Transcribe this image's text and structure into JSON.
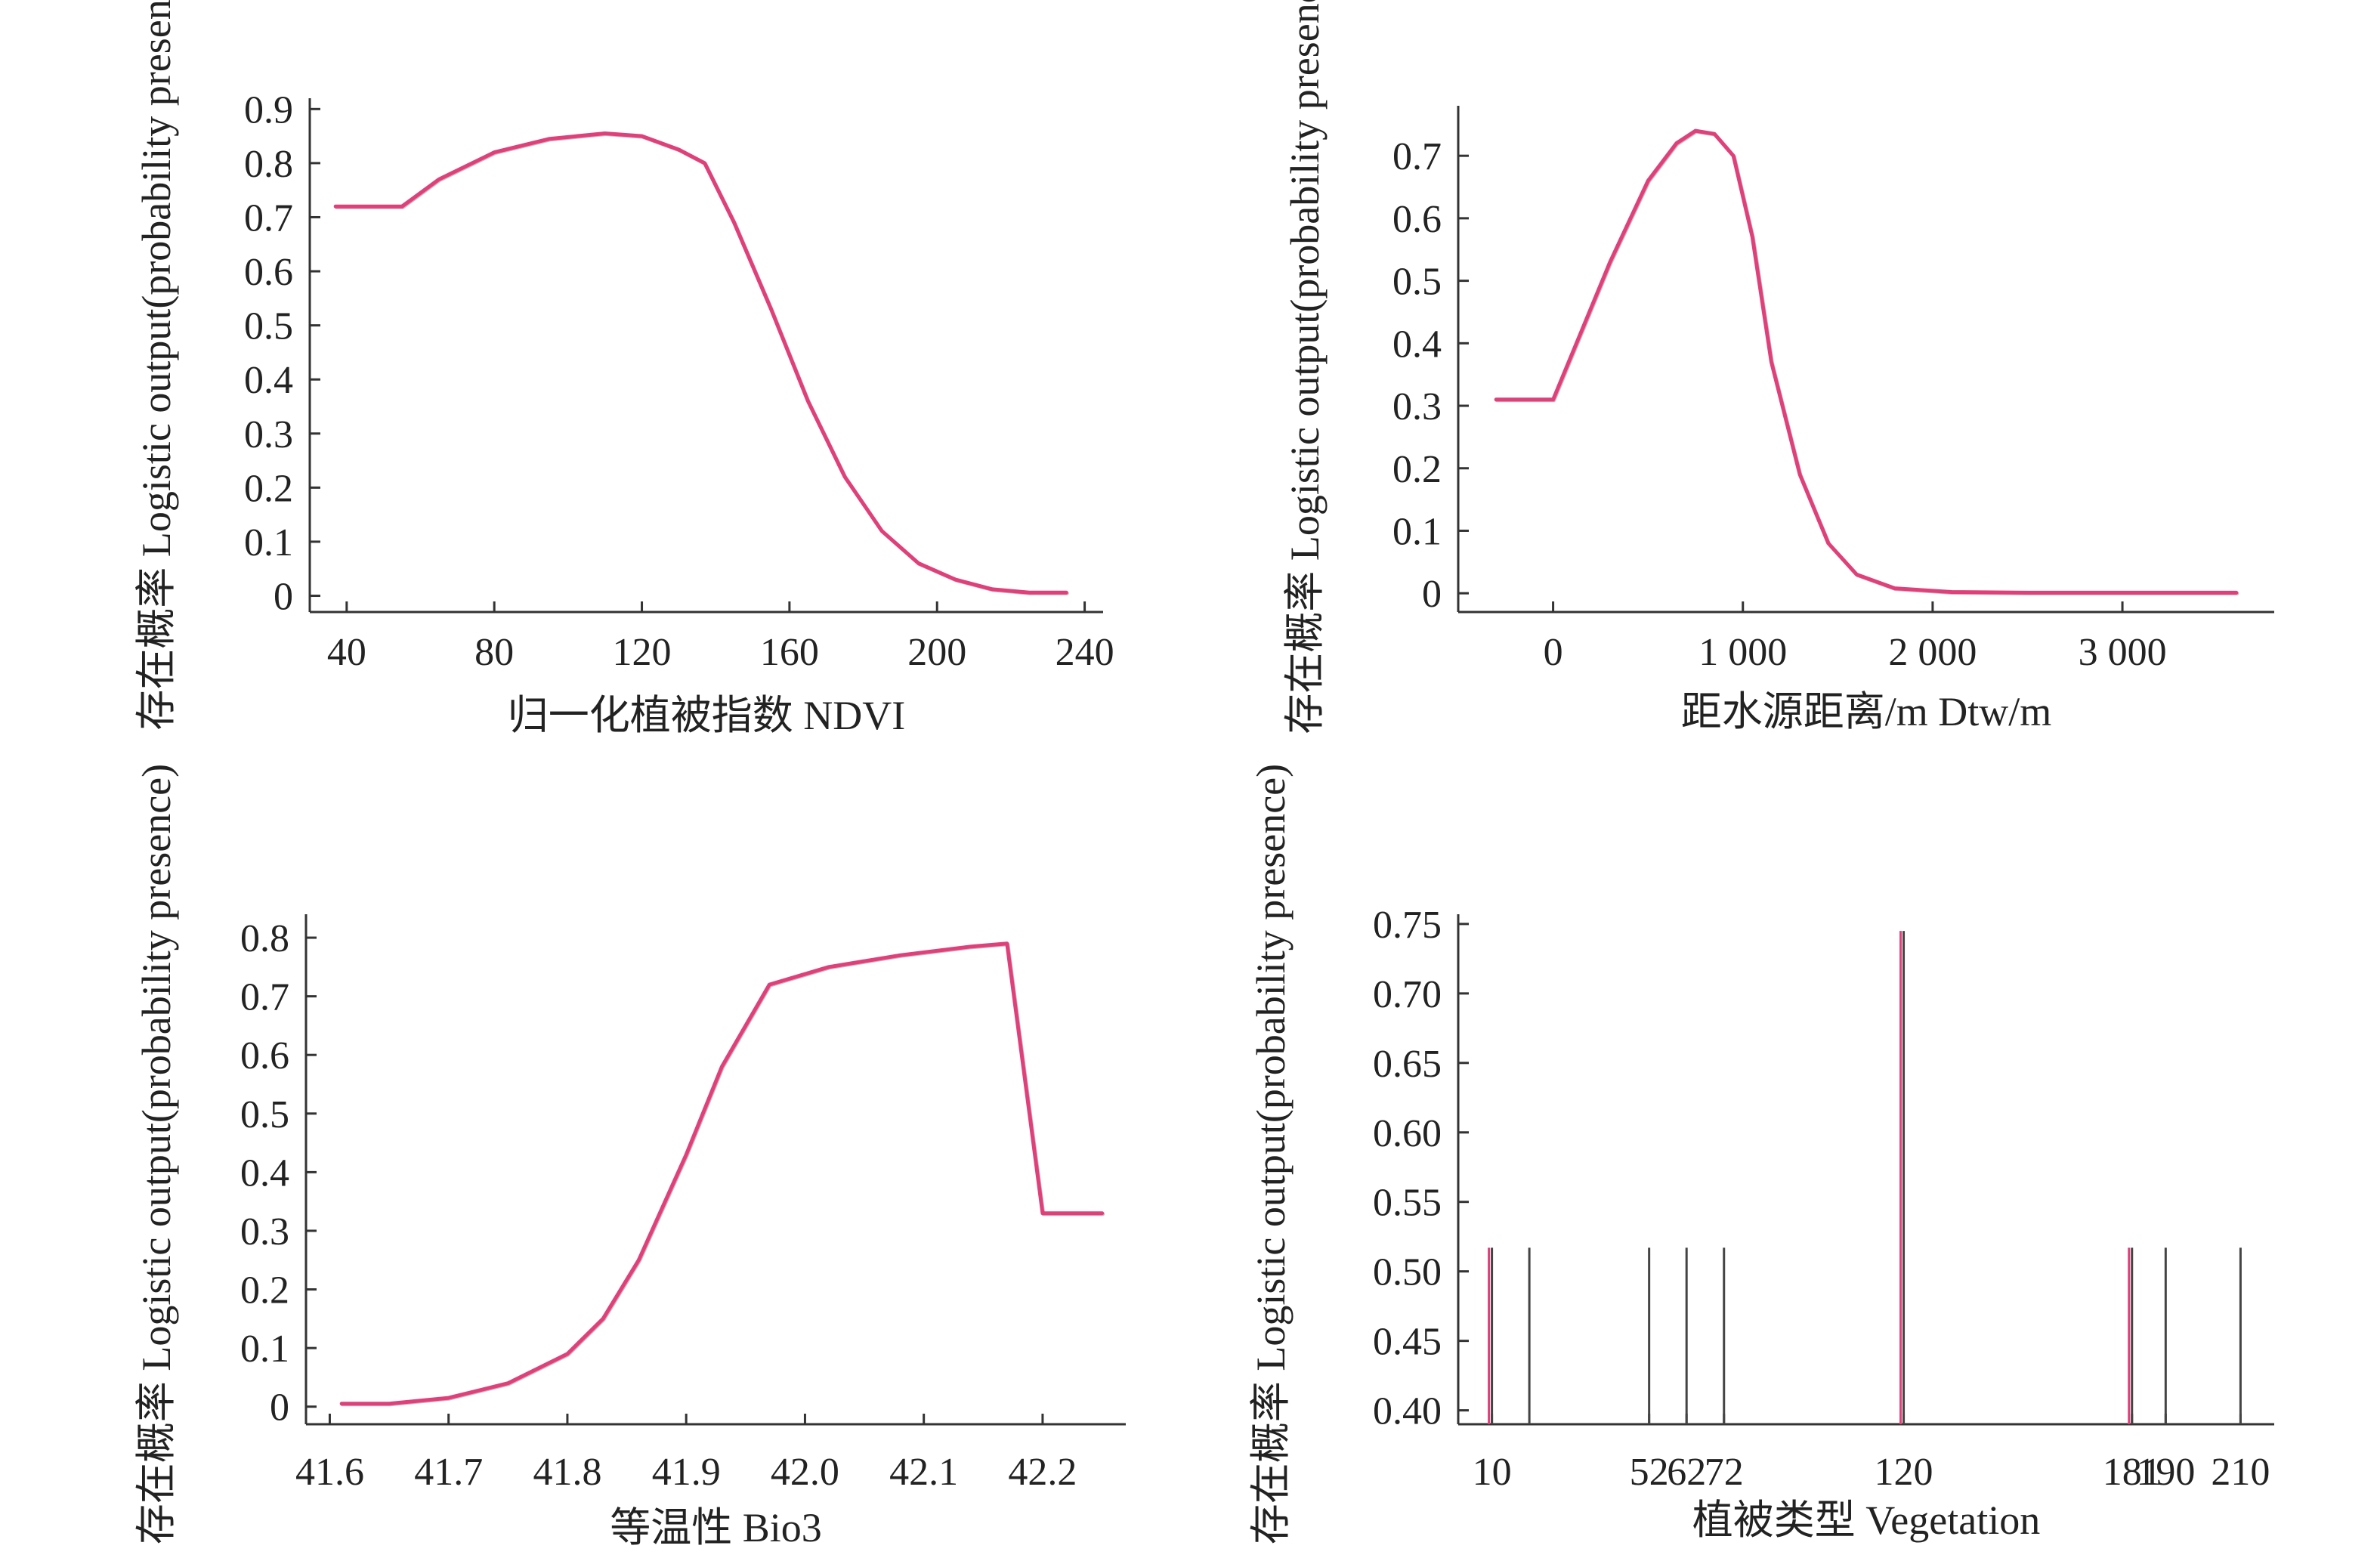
{
  "colors": {
    "curve": "#e0407a",
    "curve_shadow": "#7a2040",
    "spike_dark": "#444444"
  },
  "chart_data": [
    {
      "type": "line",
      "xlabel": "归一化植被指数 NDVI",
      "ylabel": "存在概率 Logistic output(probability presence)",
      "xlim": [
        30,
        245
      ],
      "ylim": [
        -0.03,
        0.92
      ],
      "xticks": [
        40,
        80,
        120,
        160,
        200,
        240
      ],
      "xtick_labels": [
        "40",
        "80",
        "120",
        "160",
        "200",
        "240"
      ],
      "yticks": [
        0,
        0.1,
        0.2,
        0.3,
        0.4,
        0.5,
        0.6,
        0.7,
        0.8,
        0.9
      ],
      "ytick_labels": [
        "0",
        "0.1",
        "0.2",
        "0.3",
        "0.4",
        "0.5",
        "0.6",
        "0.7",
        "0.8",
        "0.9"
      ],
      "x": [
        37,
        55,
        65,
        80,
        95,
        110,
        120,
        130,
        137,
        145,
        155,
        165,
        175,
        185,
        195,
        205,
        215,
        225,
        235
      ],
      "y": [
        0.72,
        0.72,
        0.77,
        0.82,
        0.845,
        0.855,
        0.85,
        0.825,
        0.8,
        0.69,
        0.53,
        0.36,
        0.22,
        0.12,
        0.06,
        0.03,
        0.012,
        0.006,
        0.006
      ]
    },
    {
      "type": "line",
      "xlabel": "距水源距离/m Dtw/m",
      "ylabel": "存在概率 Logistic output(probability presence)",
      "xlim": [
        -500,
        3800
      ],
      "ylim": [
        -0.03,
        0.78
      ],
      "xticks": [
        0,
        1000,
        2000,
        3000
      ],
      "xtick_labels": [
        "0",
        "1 000",
        "2 000",
        "3 000"
      ],
      "yticks": [
        0,
        0.1,
        0.2,
        0.3,
        0.4,
        0.5,
        0.6,
        0.7
      ],
      "ytick_labels": [
        "0",
        "0.1",
        "0.2",
        "0.3",
        "0.4",
        "0.5",
        "0.6",
        "0.7"
      ],
      "x": [
        -300,
        0,
        150,
        300,
        500,
        650,
        750,
        850,
        950,
        1050,
        1150,
        1300,
        1450,
        1600,
        1800,
        2100,
        2500,
        3000,
        3600
      ],
      "y": [
        0.31,
        0.31,
        0.42,
        0.53,
        0.66,
        0.72,
        0.74,
        0.735,
        0.7,
        0.57,
        0.37,
        0.19,
        0.08,
        0.03,
        0.008,
        0.002,
        0.001,
        0.001,
        0.001
      ]
    },
    {
      "type": "line",
      "xlabel": "等温性 Bio3",
      "ylabel": "存在概率 Logistic output(probability presence)",
      "xlim": [
        41.58,
        42.27
      ],
      "ylim": [
        -0.03,
        0.84
      ],
      "xticks": [
        41.6,
        41.7,
        41.8,
        41.9,
        42.0,
        42.1,
        42.2
      ],
      "xtick_labels": [
        "41.6",
        "41.7",
        "41.8",
        "41.9",
        "42.0",
        "42.1",
        "42.2"
      ],
      "yticks": [
        0,
        0.1,
        0.2,
        0.3,
        0.4,
        0.5,
        0.6,
        0.7,
        0.8
      ],
      "ytick_labels": [
        "0",
        "0.1",
        "0.2",
        "0.3",
        "0.4",
        "0.5",
        "0.6",
        "0.7",
        "0.8"
      ],
      "x": [
        41.61,
        41.65,
        41.7,
        41.75,
        41.8,
        41.83,
        41.86,
        41.9,
        41.93,
        41.97,
        42.02,
        42.08,
        42.14,
        42.17,
        42.2,
        42.25
      ],
      "y": [
        0.005,
        0.005,
        0.015,
        0.04,
        0.09,
        0.15,
        0.25,
        0.43,
        0.58,
        0.72,
        0.75,
        0.77,
        0.785,
        0.79,
        0.33,
        0.33
      ]
    },
    {
      "type": "bar",
      "xlabel": "植被类型 Vegetation",
      "ylabel": "存在概率 Logistic output(probability presence)",
      "xlim": [
        1,
        219
      ],
      "ylim": [
        0.39,
        0.757
      ],
      "xticks": [
        10,
        52,
        62,
        72,
        120,
        181,
        190,
        210
      ],
      "xtick_labels": [
        "10",
        "52",
        "62",
        "72",
        "120",
        "181",
        "190",
        "210"
      ],
      "yticks": [
        0.4,
        0.45,
        0.5,
        0.55,
        0.6,
        0.65,
        0.7,
        0.75
      ],
      "ytick_labels": [
        "0.40",
        "0.45",
        "0.50",
        "0.55",
        "0.60",
        "0.65",
        "0.70",
        "0.75"
      ],
      "bars": [
        {
          "x": 10,
          "y": 0.517,
          "colored": true
        },
        {
          "x": 20,
          "y": 0.517,
          "colored": false
        },
        {
          "x": 52,
          "y": 0.517,
          "colored": false
        },
        {
          "x": 62,
          "y": 0.517,
          "colored": false
        },
        {
          "x": 72,
          "y": 0.517,
          "colored": false
        },
        {
          "x": 120,
          "y": 0.745,
          "colored": true
        },
        {
          "x": 181,
          "y": 0.517,
          "colored": true
        },
        {
          "x": 190,
          "y": 0.517,
          "colored": false
        },
        {
          "x": 210,
          "y": 0.517,
          "colored": false
        }
      ]
    }
  ]
}
